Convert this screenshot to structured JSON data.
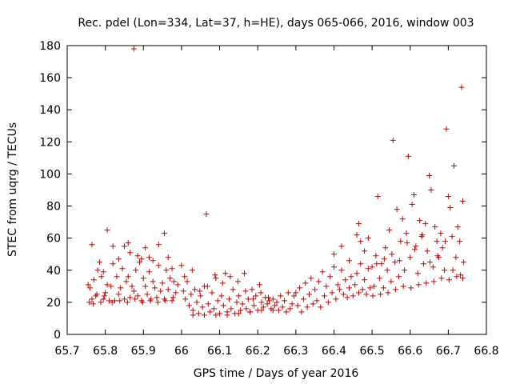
{
  "chart_data": {
    "type": "scatter",
    "title": "Rec. pdel (Lon=334, Lat=37, h=HE), days 065-066, 2016, window 003",
    "xlabel": "GPS time / Days of year 2016",
    "ylabel": "STEC from uqrg / TECUs",
    "xlim": [
      65.7,
      66.8
    ],
    "ylim": [
      0,
      180
    ],
    "xticks": [
      "65.7",
      "65.8",
      "65.9",
      "66",
      "66.1",
      "66.2",
      "66.3",
      "66.4",
      "66.5",
      "66.6",
      "66.7",
      "66.8"
    ],
    "yticks": [
      "0",
      "20",
      "40",
      "60",
      "80",
      "100",
      "120",
      "140",
      "160",
      "180"
    ],
    "grid": false,
    "marker": "+",
    "series": [
      {
        "color": "#cc0000",
        "points": [
          [
            65.755,
            31
          ],
          [
            65.76,
            29
          ],
          [
            65.765,
            22
          ],
          [
            65.77,
            34
          ],
          [
            65.775,
            24
          ],
          [
            65.78,
            40
          ],
          [
            65.785,
            45
          ],
          [
            65.79,
            36
          ],
          [
            65.795,
            22
          ],
          [
            65.8,
            26
          ],
          [
            65.805,
            31
          ],
          [
            65.81,
            21
          ],
          [
            65.815,
            30
          ],
          [
            65.82,
            44
          ],
          [
            65.825,
            21
          ],
          [
            65.83,
            36
          ],
          [
            65.835,
            25
          ],
          [
            65.84,
            29
          ],
          [
            65.845,
            41
          ],
          [
            65.85,
            22
          ],
          [
            65.855,
            33
          ],
          [
            65.86,
            36
          ],
          [
            65.865,
            23
          ],
          [
            65.87,
            30
          ],
          [
            65.875,
            27
          ],
          [
            65.88,
            40
          ],
          [
            65.885,
            24
          ],
          [
            65.89,
            45
          ],
          [
            65.895,
            21
          ],
          [
            65.9,
            35
          ],
          [
            65.905,
            30
          ],
          [
            65.91,
            25
          ],
          [
            65.915,
            39
          ],
          [
            65.92,
            22
          ],
          [
            65.925,
            33
          ],
          [
            65.93,
            29
          ],
          [
            65.935,
            23
          ],
          [
            65.94,
            43
          ],
          [
            65.945,
            27
          ],
          [
            65.95,
            32
          ],
          [
            65.955,
            22
          ],
          [
            65.96,
            40
          ],
          [
            65.965,
            28
          ],
          [
            65.97,
            35
          ],
          [
            65.975,
            21
          ],
          [
            65.98,
            33
          ],
          [
            65.985,
            26
          ],
          [
            65.99,
            31
          ],
          [
            65.758,
            20
          ],
          [
            65.768,
            19
          ],
          [
            65.778,
            25
          ],
          [
            65.788,
            20
          ],
          [
            65.798,
            24
          ],
          [
            65.818,
            20
          ],
          [
            65.838,
            21
          ],
          [
            65.858,
            20
          ],
          [
            65.878,
            22
          ],
          [
            65.898,
            20
          ],
          [
            65.918,
            21
          ],
          [
            65.938,
            20
          ],
          [
            65.958,
            21
          ],
          [
            65.978,
            23
          ],
          [
            65.765,
            56
          ],
          [
            65.795,
            39
          ],
          [
            65.805,
            65
          ],
          [
            65.82,
            55
          ],
          [
            65.835,
            47
          ],
          [
            65.85,
            55
          ],
          [
            65.86,
            57
          ],
          [
            65.865,
            51
          ],
          [
            65.875,
            178
          ],
          [
            65.885,
            49
          ],
          [
            65.895,
            47
          ],
          [
            65.905,
            54
          ],
          [
            65.915,
            48
          ],
          [
            65.925,
            46
          ],
          [
            65.94,
            56
          ],
          [
            65.955,
            63
          ],
          [
            65.965,
            48
          ],
          [
            65.975,
            41
          ],
          [
            66.0,
            43
          ],
          [
            66.005,
            27
          ],
          [
            66.01,
            22
          ],
          [
            66.015,
            33
          ],
          [
            66.02,
            18
          ],
          [
            66.025,
            25
          ],
          [
            66.03,
            15
          ],
          [
            66.035,
            28
          ],
          [
            66.04,
            20
          ],
          [
            66.045,
            13
          ],
          [
            66.05,
            24
          ],
          [
            66.055,
            17
          ],
          [
            66.06,
            30
          ],
          [
            66.065,
            75
          ],
          [
            66.07,
            19
          ],
          [
            66.075,
            14
          ],
          [
            66.08,
            26
          ],
          [
            66.085,
            16
          ],
          [
            66.09,
            35
          ],
          [
            66.095,
            21
          ],
          [
            66.1,
            13
          ],
          [
            66.105,
            24
          ],
          [
            66.11,
            18
          ],
          [
            66.115,
            38
          ],
          [
            66.12,
            14
          ],
          [
            66.125,
            22
          ],
          [
            66.13,
            16
          ],
          [
            66.135,
            28
          ],
          [
            66.14,
            13
          ],
          [
            66.145,
            20
          ],
          [
            66.15,
            24
          ],
          [
            66.155,
            15
          ],
          [
            66.16,
            19
          ],
          [
            66.165,
            38
          ],
          [
            66.17,
            16
          ],
          [
            66.175,
            22
          ],
          [
            66.18,
            14
          ],
          [
            66.185,
            28
          ],
          [
            66.19,
            18
          ],
          [
            66.195,
            24
          ],
          [
            66.2,
            15
          ],
          [
            66.205,
            31
          ],
          [
            66.21,
            20
          ],
          [
            66.215,
            17
          ],
          [
            66.22,
            23
          ],
          [
            66.225,
            19
          ],
          [
            66.23,
            21
          ],
          [
            66.235,
            16
          ],
          [
            66.24,
            22
          ],
          [
            66.245,
            18
          ],
          [
            66.25,
            20
          ],
          [
            66.255,
            15
          ],
          [
            66.26,
            24
          ],
          [
            66.265,
            17
          ],
          [
            66.27,
            21
          ],
          [
            66.275,
            14
          ],
          [
            66.28,
            26
          ],
          [
            66.285,
            16
          ],
          [
            66.29,
            19
          ],
          [
            66.295,
            24
          ],
          [
            66.008,
            36
          ],
          [
            66.028,
            40
          ],
          [
            66.048,
            27
          ],
          [
            66.068,
            30
          ],
          [
            66.088,
            37
          ],
          [
            66.108,
            32
          ],
          [
            66.128,
            36
          ],
          [
            66.148,
            33
          ],
          [
            66.168,
            27
          ],
          [
            66.188,
            22
          ],
          [
            66.208,
            26
          ],
          [
            66.228,
            23
          ],
          [
            66.03,
            12
          ],
          [
            66.06,
            12
          ],
          [
            66.09,
            12
          ],
          [
            66.12,
            12
          ],
          [
            66.15,
            13
          ],
          [
            66.18,
            14
          ],
          [
            66.21,
            15
          ],
          [
            66.24,
            15
          ],
          [
            66.3,
            26
          ],
          [
            66.305,
            18
          ],
          [
            66.31,
            29
          ],
          [
            66.315,
            14
          ],
          [
            66.32,
            22
          ],
          [
            66.325,
            32
          ],
          [
            66.33,
            17
          ],
          [
            66.335,
            25
          ],
          [
            66.34,
            35
          ],
          [
            66.345,
            19
          ],
          [
            66.35,
            28
          ],
          [
            66.355,
            21
          ],
          [
            66.36,
            33
          ],
          [
            66.365,
            17
          ],
          [
            66.37,
            39
          ],
          [
            66.375,
            24
          ],
          [
            66.38,
            30
          ],
          [
            66.385,
            20
          ],
          [
            66.39,
            36
          ],
          [
            66.395,
            26
          ],
          [
            66.4,
            42
          ],
          [
            66.405,
            22
          ],
          [
            66.41,
            31
          ],
          [
            66.415,
            28
          ],
          [
            66.42,
            40
          ],
          [
            66.425,
            25
          ],
          [
            66.43,
            34
          ],
          [
            66.435,
            23
          ],
          [
            66.44,
            29
          ],
          [
            66.445,
            36
          ],
          [
            66.45,
            24
          ],
          [
            66.455,
            31
          ],
          [
            66.46,
            38
          ],
          [
            66.465,
            26
          ],
          [
            66.47,
            44
          ],
          [
            66.475,
            28
          ],
          [
            66.48,
            34
          ],
          [
            66.485,
            25
          ],
          [
            66.49,
            41
          ],
          [
            66.495,
            29
          ],
          [
            66.4,
            50
          ],
          [
            66.42,
            55
          ],
          [
            66.44,
            46
          ],
          [
            66.46,
            62
          ],
          [
            66.465,
            69
          ],
          [
            66.47,
            58
          ],
          [
            66.48,
            52
          ],
          [
            66.49,
            60
          ],
          [
            66.5,
            42
          ],
          [
            66.505,
            30
          ],
          [
            66.51,
            49
          ],
          [
            66.515,
            86
          ],
          [
            66.52,
            35
          ],
          [
            66.525,
            44
          ],
          [
            66.53,
            29
          ],
          [
            66.535,
            54
          ],
          [
            66.54,
            40
          ],
          [
            66.545,
            65
          ],
          [
            66.55,
            33
          ],
          [
            66.555,
            121
          ],
          [
            66.56,
            45
          ],
          [
            66.565,
            78
          ],
          [
            66.57,
            36
          ],
          [
            66.575,
            58
          ],
          [
            66.58,
            72
          ],
          [
            66.585,
            40
          ],
          [
            66.59,
            63
          ],
          [
            66.595,
            111
          ],
          [
            66.6,
            48
          ],
          [
            66.605,
            81
          ],
          [
            66.61,
            87
          ],
          [
            66.615,
            55
          ],
          [
            66.62,
            38
          ],
          [
            66.625,
            71
          ],
          [
            66.63,
            61
          ],
          [
            66.635,
            44
          ],
          [
            66.64,
            69
          ],
          [
            66.645,
            52
          ],
          [
            66.65,
            99
          ],
          [
            66.655,
            90
          ],
          [
            66.66,
            42
          ],
          [
            66.665,
            67
          ],
          [
            66.67,
            58
          ],
          [
            66.675,
            48
          ],
          [
            66.68,
            63
          ],
          [
            66.685,
            54
          ],
          [
            66.69,
            40
          ],
          [
            66.695,
            128
          ],
          [
            66.7,
            86
          ],
          [
            66.705,
            79
          ],
          [
            66.71,
            61
          ],
          [
            66.715,
            105
          ],
          [
            66.72,
            48
          ],
          [
            66.725,
            67
          ],
          [
            66.73,
            58
          ],
          [
            66.735,
            154
          ],
          [
            66.738,
            83
          ],
          [
            66.74,
            45
          ],
          [
            66.502,
            24
          ],
          [
            66.522,
            25
          ],
          [
            66.542,
            26
          ],
          [
            66.562,
            28
          ],
          [
            66.582,
            30
          ],
          [
            66.602,
            29
          ],
          [
            66.622,
            31
          ],
          [
            66.642,
            32
          ],
          [
            66.662,
            33
          ],
          [
            66.682,
            35
          ],
          [
            66.702,
            34
          ],
          [
            66.722,
            36
          ],
          [
            66.738,
            35
          ],
          [
            66.512,
            44
          ],
          [
            66.532,
            47
          ],
          [
            66.552,
            50
          ],
          [
            66.572,
            46
          ],
          [
            66.592,
            57
          ],
          [
            66.612,
            53
          ],
          [
            66.632,
            62
          ],
          [
            66.652,
            45
          ],
          [
            66.672,
            49
          ],
          [
            66.692,
            58
          ],
          [
            66.712,
            40
          ],
          [
            66.732,
            37
          ]
        ]
      }
    ]
  }
}
